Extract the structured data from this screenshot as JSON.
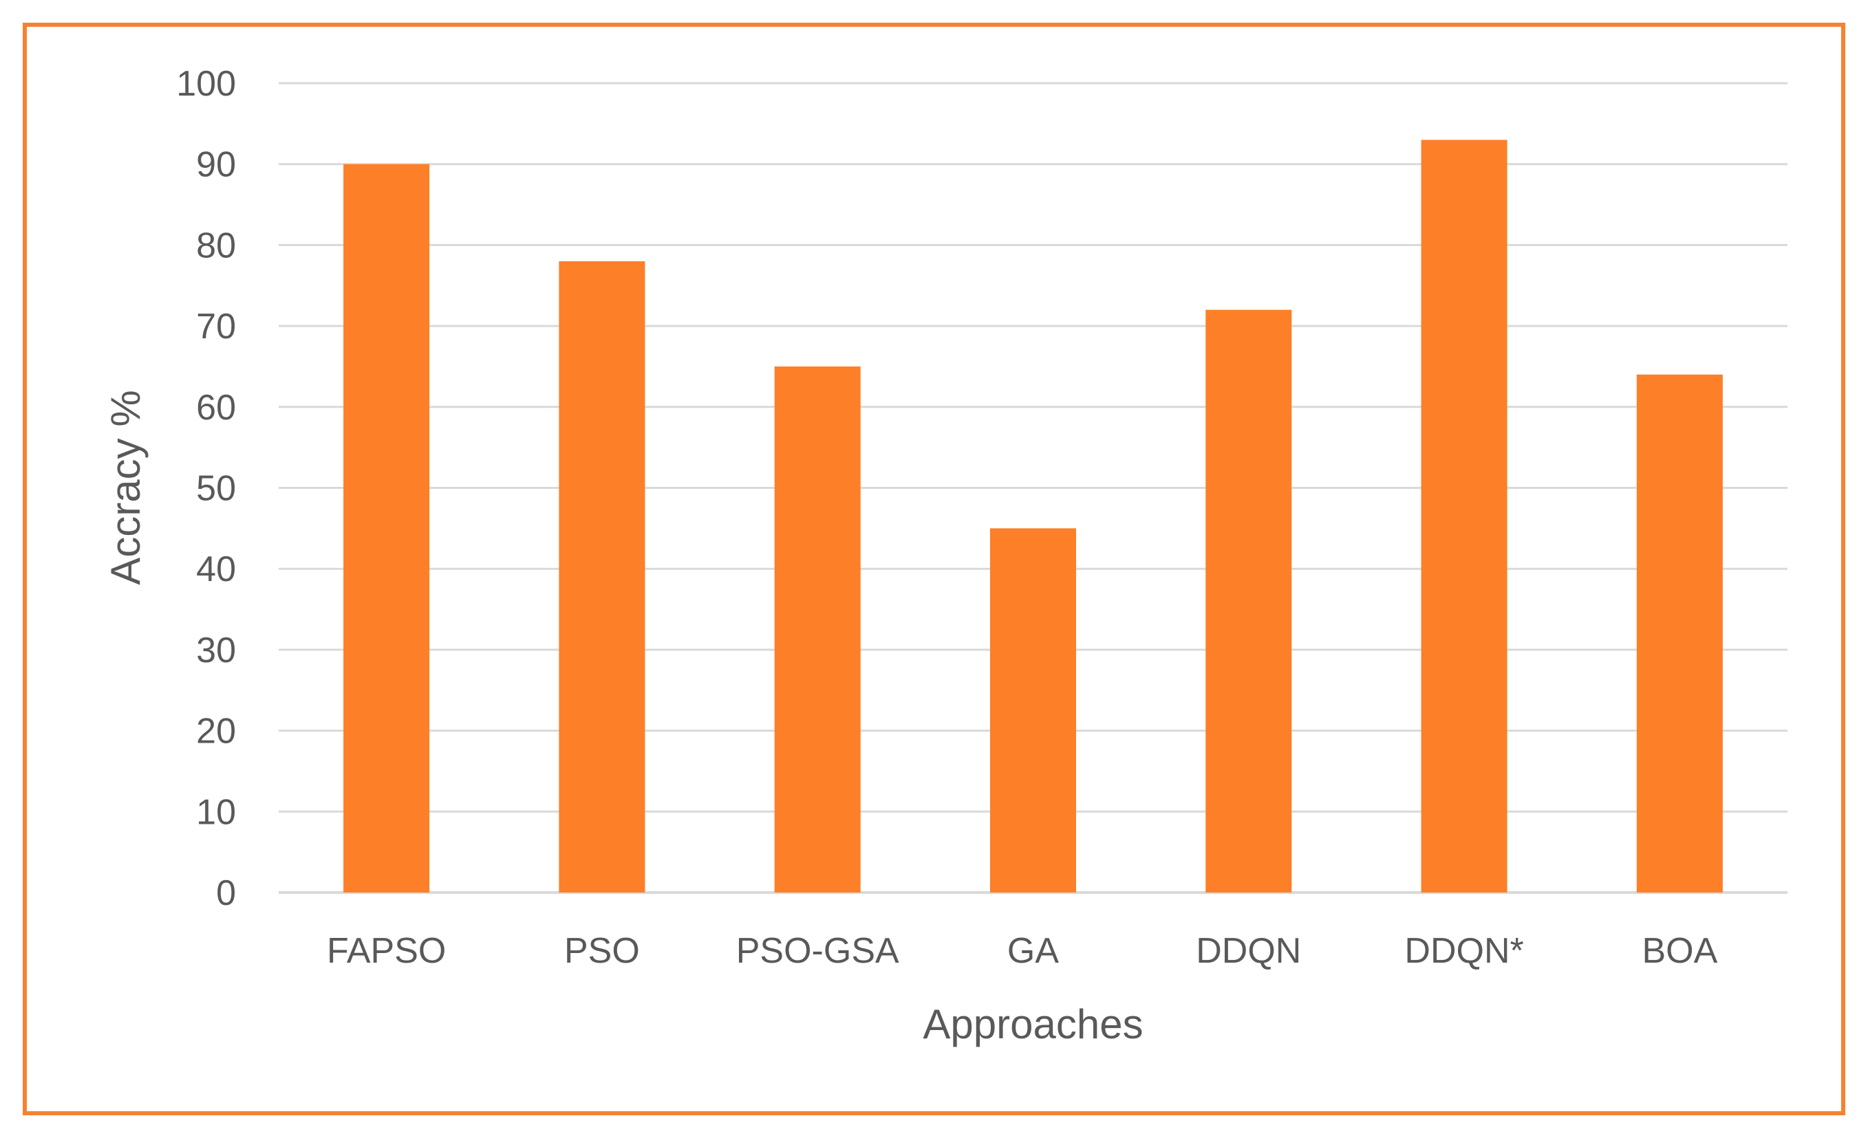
{
  "colors": {
    "bar": "#FD7F28",
    "frame": "#F58232",
    "grid": "#D9D9D9",
    "text": "#595959"
  },
  "chart_data": {
    "type": "bar",
    "title": "",
    "xlabel": "Approaches",
    "ylabel": "Accracy %",
    "categories": [
      "FAPSO",
      "PSO",
      "PSO-GSA",
      "GA",
      "DDQN",
      "DDQN*",
      "BOA"
    ],
    "values": [
      90,
      78,
      65,
      45,
      72,
      93,
      64
    ],
    "ylim": [
      0,
      100
    ],
    "yticks": [
      0,
      10,
      20,
      30,
      40,
      50,
      60,
      70,
      80,
      90,
      100
    ],
    "grid": true,
    "legend": "none"
  }
}
